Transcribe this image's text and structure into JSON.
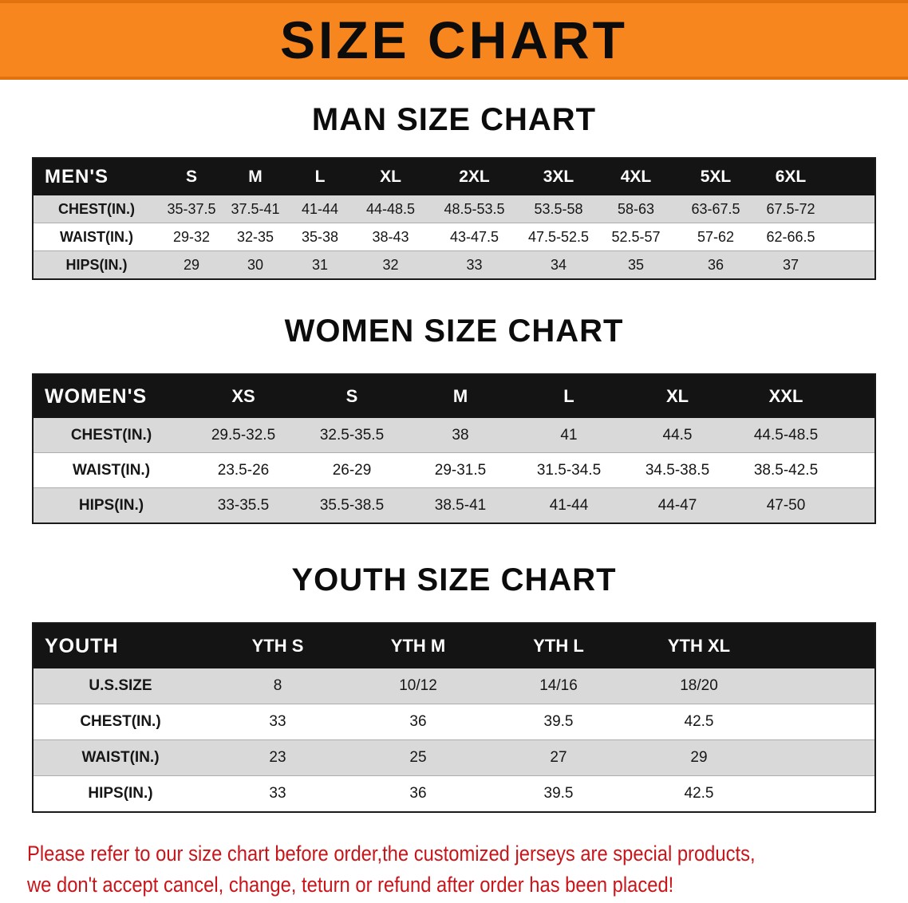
{
  "banner": {
    "title": "SIZE CHART"
  },
  "sections": [
    {
      "heading": "MAN SIZE CHART",
      "table": {
        "header": [
          "MEN'S",
          "S",
          "M",
          "L",
          "XL",
          "2XL",
          "3XL",
          "4XL",
          "5XL",
          "6XL"
        ],
        "rows": [
          [
            "CHEST(IN.)",
            "35-37.5",
            "37.5-41",
            "41-44",
            "44-48.5",
            "48.5-53.5",
            "53.5-58",
            "58-63",
            "63-67.5",
            "67.5-72"
          ],
          [
            "WAIST(IN.)",
            "29-32",
            "32-35",
            "35-38",
            "38-43",
            "43-47.5",
            "47.5-52.5",
            "52.5-57",
            "57-62",
            "62-66.5"
          ],
          [
            "HIPS(IN.)",
            "29",
            "30",
            "31",
            "32",
            "33",
            "34",
            "35",
            "36",
            "37"
          ]
        ]
      }
    },
    {
      "heading": "WOMEN SIZE CHART",
      "table": {
        "header": [
          "WOMEN'S",
          "XS",
          "S",
          "M",
          "L",
          "XL",
          "XXL"
        ],
        "rows": [
          [
            "CHEST(IN.)",
            "29.5-32.5",
            "32.5-35.5",
            "38",
            "41",
            "44.5",
            "44.5-48.5"
          ],
          [
            "WAIST(IN.)",
            "23.5-26",
            "26-29",
            "29-31.5",
            "31.5-34.5",
            "34.5-38.5",
            "38.5-42.5"
          ],
          [
            "HIPS(IN.)",
            "33-35.5",
            "35.5-38.5",
            "38.5-41",
            "41-44",
            "44-47",
            "47-50"
          ]
        ]
      }
    },
    {
      "heading": "YOUTH SIZE CHART",
      "table": {
        "header": [
          "YOUTH",
          "YTH S",
          "YTH M",
          "YTH L",
          "YTH XL"
        ],
        "rows": [
          [
            "U.S.SIZE",
            "8",
            "10/12",
            "14/16",
            "18/20"
          ],
          [
            "CHEST(IN.)",
            "33",
            "36",
            "39.5",
            "42.5"
          ],
          [
            "WAIST(IN.)",
            "23",
            "25",
            "27",
            "29"
          ],
          [
            "HIPS(IN.)",
            "33",
            "36",
            "39.5",
            "42.5"
          ]
        ]
      }
    }
  ],
  "footer": {
    "line1": "Please refer to our size chart before order,the customized jerseys are special products,",
    "line2": "we don't accept cancel, change, teturn or refund after order has been placed!"
  },
  "colors": {
    "banner_orange": "#f6861d",
    "table_header_black": "#141414",
    "row_gray": "#d9d9d9",
    "note_red": "#c9151a"
  }
}
